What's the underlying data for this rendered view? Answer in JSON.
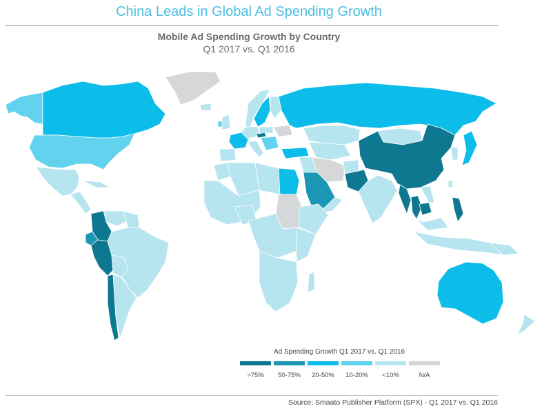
{
  "title": "China Leads in Global Ad Spending Growth",
  "chart_title": "Mobile Ad Spending Growth by Country",
  "chart_subtitle": "Q1 2017 vs. Q1 2016",
  "legend": {
    "title": "Ad Spending Growth Q1 2017 vs. Q1 2016",
    "items": [
      {
        "label": ">75%",
        "color": "#0f7891"
      },
      {
        "label": "50-75%",
        "color": "#1c97b3"
      },
      {
        "label": "20-50%",
        "color": "#0dbde9"
      },
      {
        "label": "10-20%",
        "color": "#63d2ee"
      },
      {
        "label": "<10%",
        "color": "#b6e4ef"
      },
      {
        "label": "N/A",
        "color": "#d6d7d9"
      }
    ]
  },
  "source": "Source: Smaato Publisher Platform (SPX) - Q1 2017 vs. Q1 2016",
  "chart_data": {
    "type": "choropleth",
    "categories": [
      ">75%",
      "50-75%",
      "20-50%",
      "10-20%",
      "<10%",
      "N/A"
    ],
    "regions": [
      {
        "name": "China",
        "category": ">75%"
      },
      {
        "name": "Pakistan",
        "category": ">75%"
      },
      {
        "name": "Myanmar",
        "category": ">75%"
      },
      {
        "name": "Thailand",
        "category": ">75%"
      },
      {
        "name": "Cambodia",
        "category": ">75%"
      },
      {
        "name": "Philippines",
        "category": ">75%"
      },
      {
        "name": "Colombia",
        "category": ">75%"
      },
      {
        "name": "Peru",
        "category": ">75%"
      },
      {
        "name": "Chile",
        "category": ">75%"
      },
      {
        "name": "Czech Republic",
        "category": ">75%"
      },
      {
        "name": "Saudi Arabia",
        "category": "50-75%"
      },
      {
        "name": "Ecuador",
        "category": "50-75%"
      },
      {
        "name": "Canada",
        "category": "20-50%"
      },
      {
        "name": "Russia",
        "category": "20-50%"
      },
      {
        "name": "Australia",
        "category": "20-50%"
      },
      {
        "name": "Egypt",
        "category": "20-50%"
      },
      {
        "name": "Turkey",
        "category": "20-50%"
      },
      {
        "name": "Japan",
        "category": "20-50%"
      },
      {
        "name": "France",
        "category": "20-50%"
      },
      {
        "name": "Sweden",
        "category": "20-50%"
      },
      {
        "name": "United States",
        "category": "10-20%"
      },
      {
        "name": "Alaska",
        "category": "10-20%"
      },
      {
        "name": "Brazil",
        "category": "<10%"
      },
      {
        "name": "Argentina",
        "category": "<10%"
      },
      {
        "name": "Mexico",
        "category": "<10%"
      },
      {
        "name": "India",
        "category": "<10%"
      },
      {
        "name": "Kazakhstan",
        "category": "<10%"
      },
      {
        "name": "Mongolia",
        "category": "<10%"
      },
      {
        "name": "Indonesia",
        "category": "<10%"
      },
      {
        "name": "New Zealand",
        "category": "<10%"
      },
      {
        "name": "Greenland",
        "category": "N/A"
      },
      {
        "name": "Iran",
        "category": "N/A"
      },
      {
        "name": "Sudan",
        "category": "N/A"
      }
    ]
  }
}
